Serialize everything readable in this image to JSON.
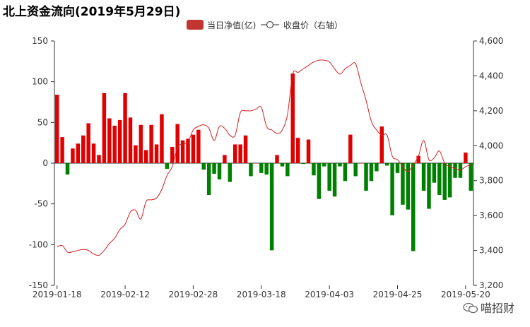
{
  "chart_data": {
    "type": "bar+line",
    "title": "北上资金流向(2019年5月29日)",
    "legend": [
      {
        "name": "当日净值(亿)",
        "color_pos": "#e00000",
        "color_neg": "#008000",
        "legend_color": "#c23531"
      },
      {
        "name": "收盘价（右轴）",
        "color": "#d42020"
      }
    ],
    "left_axis": {
      "min": -150,
      "max": 150,
      "ticks": [
        150,
        100,
        50,
        0,
        -50,
        -100,
        -150
      ]
    },
    "right_axis": {
      "min": 3200,
      "max": 4600,
      "ticks": [
        "4,600",
        "4,400",
        "4,200",
        "4,000",
        "3,800",
        "3,600",
        "3,400",
        "3,200"
      ],
      "tick_values": [
        4600,
        4400,
        4200,
        4000,
        3800,
        3600,
        3400,
        3200
      ]
    },
    "x_tick_labels": [
      {
        "label": "2019-01-18",
        "index": 0
      },
      {
        "label": "2019-02-12",
        "index": 13
      },
      {
        "label": "2019-02-28",
        "index": 26
      },
      {
        "label": "2019-03-18",
        "index": 39
      },
      {
        "label": "2019-04-03",
        "index": 52
      },
      {
        "label": "2019-04-25",
        "index": 65
      },
      {
        "label": "2019-05-20",
        "index": 78
      }
    ],
    "bar_values": [
      84,
      32,
      -14,
      18,
      24,
      34,
      49,
      24,
      10,
      86,
      55,
      46,
      53,
      86,
      56,
      22,
      47,
      16,
      47,
      23,
      60,
      -7,
      20,
      48,
      28,
      30,
      35,
      41,
      -8,
      -39,
      -13,
      -20,
      10,
      -23,
      23,
      23,
      34,
      -16,
      0,
      -12,
      -14,
      -107,
      10,
      -4,
      -16,
      110,
      31,
      -1,
      29,
      -15,
      -44,
      -4,
      -34,
      -41,
      -4,
      -22,
      35,
      -16,
      0,
      -34,
      -22,
      -10,
      45,
      -3,
      -64,
      -12,
      -51,
      -57,
      -108,
      9,
      -34,
      -56,
      -24,
      -39,
      -45,
      -42,
      -18,
      -18,
      13,
      -34
    ],
    "close_values": [
      3420,
      3428,
      3390,
      3392,
      3400,
      3405,
      3400,
      3380,
      3372,
      3400,
      3440,
      3470,
      3520,
      3550,
      3620,
      3630,
      3580,
      3680,
      3690,
      3700,
      3750,
      3830,
      3880,
      3990,
      4010,
      4020,
      4090,
      4110,
      4120,
      4100,
      4030,
      4110,
      4100,
      4060,
      4060,
      4190,
      4200,
      4200,
      4210,
      4220,
      4110,
      4090,
      4070,
      4090,
      4180,
      4410,
      4420,
      4440,
      4460,
      4480,
      4490,
      4490,
      4480,
      4440,
      4410,
      4440,
      4460,
      4470,
      4360,
      4260,
      4140,
      4090,
      4060,
      4060,
      3940,
      3920,
      3880,
      3850,
      3890,
      3940,
      4030,
      3920,
      3930,
      3970,
      3900,
      3880,
      3870,
      3860,
      3880,
      3890
    ]
  },
  "watermark": {
    "text": "喵招财",
    "icon": "wechat-icon"
  }
}
